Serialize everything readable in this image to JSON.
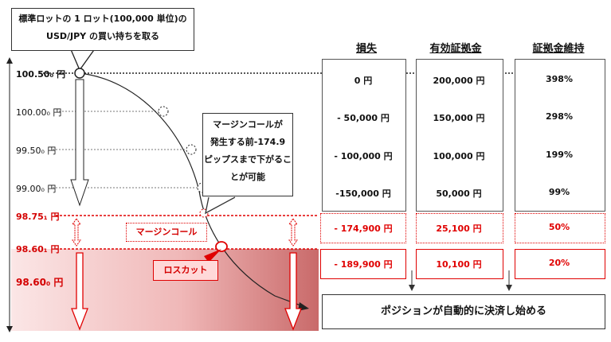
{
  "title_box": {
    "line1": "標準ロットの 1 ロット(100,000 単位)の",
    "line2": "USD/JPY の買い持ちを取る"
  },
  "price_levels": [
    {
      "label": "100.50₀ 円"
    },
    {
      "label": "100.00₀ 円"
    },
    {
      "label": "99.50₀ 円"
    },
    {
      "label": "99.00₀ 円"
    },
    {
      "label": "98.75₁ 円"
    },
    {
      "label": "98.60₁ 円"
    },
    {
      "label": "98.60₀ 円"
    }
  ],
  "headers": {
    "loss": "損失",
    "margin": "有効証拠金",
    "ratio": "証拠金維持"
  },
  "rows": [
    {
      "loss": "0 円",
      "margin": "200,000 円",
      "ratio": "398%"
    },
    {
      "loss": "- 50,000 円",
      "margin": "150,000 円",
      "ratio": "298%"
    },
    {
      "loss": "- 100,000 円",
      "margin": "100,000 円",
      "ratio": "199%"
    },
    {
      "loss": "-150,000 円",
      "margin": "50,000 円",
      "ratio": "99%"
    },
    {
      "loss": "- 174,900 円",
      "margin": "25,100 円",
      "ratio": "50%"
    },
    {
      "loss": "- 189,900 円",
      "margin": "10,100 円",
      "ratio": "20%"
    }
  ],
  "callout": {
    "line1": "マージンコールが",
    "line2": "発生する前-174.9",
    "line3": "ピップスまで下がるこ",
    "line4": "とが可能"
  },
  "margin_call_label": "マージンコール",
  "losscut_label": "ロスカット",
  "auto_close_message": "ポジションが自動的に決済し始める",
  "colors": {
    "red": "#e00000",
    "pink_zone": "#f3caca",
    "dark": "#333333"
  }
}
